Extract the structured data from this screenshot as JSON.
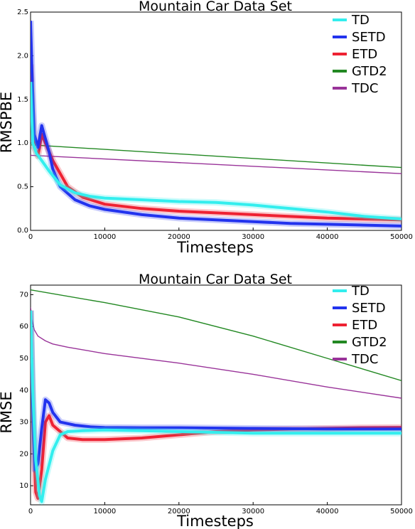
{
  "chart_data": [
    {
      "type": "line",
      "title": "Mountain Car Data Set",
      "xlabel": "Timesteps",
      "ylabel": "RMSPBE",
      "xlim": [
        0,
        50000
      ],
      "ylim": [
        0,
        2.5
      ],
      "xticks": [
        0,
        10000,
        20000,
        30000,
        40000,
        50000
      ],
      "yticks": [
        0.0,
        0.5,
        1.0,
        1.5,
        2.0,
        2.5
      ],
      "ytick_labels": [
        "0.0",
        "0.5",
        "1.0",
        "1.5",
        "2.0",
        "2.5"
      ],
      "grid": false,
      "legend_position": "top-right",
      "series": [
        {
          "name": "TD",
          "color": "#33eeee",
          "x": [
            0,
            300,
            800,
            1500,
            2500,
            4000,
            6000,
            8000,
            10000,
            15000,
            20000,
            25000,
            30000,
            35000,
            40000,
            45000,
            50000
          ],
          "y": [
            1.7,
            1.0,
            0.88,
            0.8,
            0.68,
            0.52,
            0.43,
            0.39,
            0.37,
            0.35,
            0.33,
            0.32,
            0.29,
            0.25,
            0.21,
            0.16,
            0.13
          ]
        },
        {
          "name": "SETD",
          "color": "#2233ee",
          "x": [
            0,
            200,
            500,
            1000,
            1500,
            2000,
            2500,
            3000,
            4000,
            6000,
            8000,
            10000,
            15000,
            20000,
            25000,
            30000,
            35000,
            40000,
            45000,
            50000
          ],
          "y": [
            2.4,
            1.8,
            1.1,
            0.95,
            1.2,
            1.05,
            0.9,
            0.7,
            0.5,
            0.35,
            0.28,
            0.24,
            0.18,
            0.14,
            0.12,
            0.1,
            0.08,
            0.07,
            0.06,
            0.05
          ]
        },
        {
          "name": "ETD",
          "color": "#ee2233",
          "x": [
            0,
            200,
            500,
            1000,
            1500,
            2000,
            3000,
            4000,
            5000,
            7000,
            10000,
            15000,
            20000,
            25000,
            30000,
            35000,
            40000,
            45000,
            50000
          ],
          "y": [
            1.9,
            1.4,
            0.95,
            0.85,
            1.1,
            1.0,
            0.8,
            0.65,
            0.5,
            0.38,
            0.3,
            0.25,
            0.22,
            0.2,
            0.18,
            0.16,
            0.14,
            0.13,
            0.12
          ]
        },
        {
          "name": "GTD2",
          "color": "#228822",
          "x": [
            0,
            50000
          ],
          "y": [
            0.98,
            0.72
          ]
        },
        {
          "name": "TDC",
          "color": "#993399",
          "x": [
            0,
            50000
          ],
          "y": [
            0.86,
            0.65
          ]
        }
      ]
    },
    {
      "type": "line",
      "title": "Mountain Car Data Set",
      "xlabel": "Timesteps",
      "ylabel": "RMSE",
      "xlim": [
        0,
        50000
      ],
      "ylim": [
        4,
        73
      ],
      "xticks": [
        0,
        10000,
        20000,
        30000,
        40000,
        50000
      ],
      "yticks": [
        10,
        20,
        30,
        40,
        50,
        60,
        70
      ],
      "ytick_labels": [
        "10",
        "20",
        "30",
        "40",
        "50",
        "60",
        "70"
      ],
      "grid": false,
      "legend_position": "top-right",
      "series": [
        {
          "name": "TD",
          "color": "#33eeee",
          "x": [
            0,
            300,
            700,
            1200,
            1500,
            2000,
            3000,
            4000,
            5000,
            7000,
            10000,
            15000,
            20000,
            30000,
            40000,
            50000
          ],
          "y": [
            65,
            40,
            18,
            7,
            5,
            12,
            21,
            26,
            27,
            27.3,
            27.5,
            27.3,
            27.0,
            26.5,
            26.5,
            26.5
          ]
        },
        {
          "name": "SETD",
          "color": "#2233ee",
          "x": [
            0,
            300,
            600,
            1000,
            1500,
            2000,
            2500,
            3000,
            4000,
            6000,
            8000,
            10000,
            15000,
            20000,
            30000,
            40000,
            50000
          ],
          "y": [
            65,
            35,
            15,
            17,
            28,
            37,
            36,
            33,
            30,
            29,
            28.5,
            28.3,
            28.2,
            28.2,
            28,
            27.8,
            27.8
          ]
        },
        {
          "name": "ETD",
          "color": "#ee2233",
          "x": [
            0,
            300,
            700,
            1000,
            1500,
            2000,
            2500,
            3000,
            4000,
            5000,
            7000,
            10000,
            15000,
            20000,
            25000,
            30000,
            35000,
            40000,
            45000,
            50000
          ],
          "y": [
            65,
            30,
            8,
            6,
            15,
            30,
            32,
            29,
            27,
            25,
            24.5,
            24.5,
            25,
            26,
            27,
            27.5,
            27.8,
            28,
            28.2,
            28.3
          ]
        },
        {
          "name": "GTD2",
          "color": "#228822",
          "x": [
            0,
            10000,
            20000,
            30000,
            40000,
            50000
          ],
          "y": [
            71.5,
            67.5,
            63,
            57,
            50,
            43
          ]
        },
        {
          "name": "TDC",
          "color": "#993399",
          "x": [
            0,
            200,
            500,
            1000,
            2000,
            3000,
            5000,
            10000,
            20000,
            30000,
            40000,
            50000
          ],
          "y": [
            66,
            62,
            59,
            57,
            55.5,
            54.5,
            53.5,
            51.5,
            48.5,
            45,
            41,
            37.5
          ]
        }
      ]
    }
  ]
}
